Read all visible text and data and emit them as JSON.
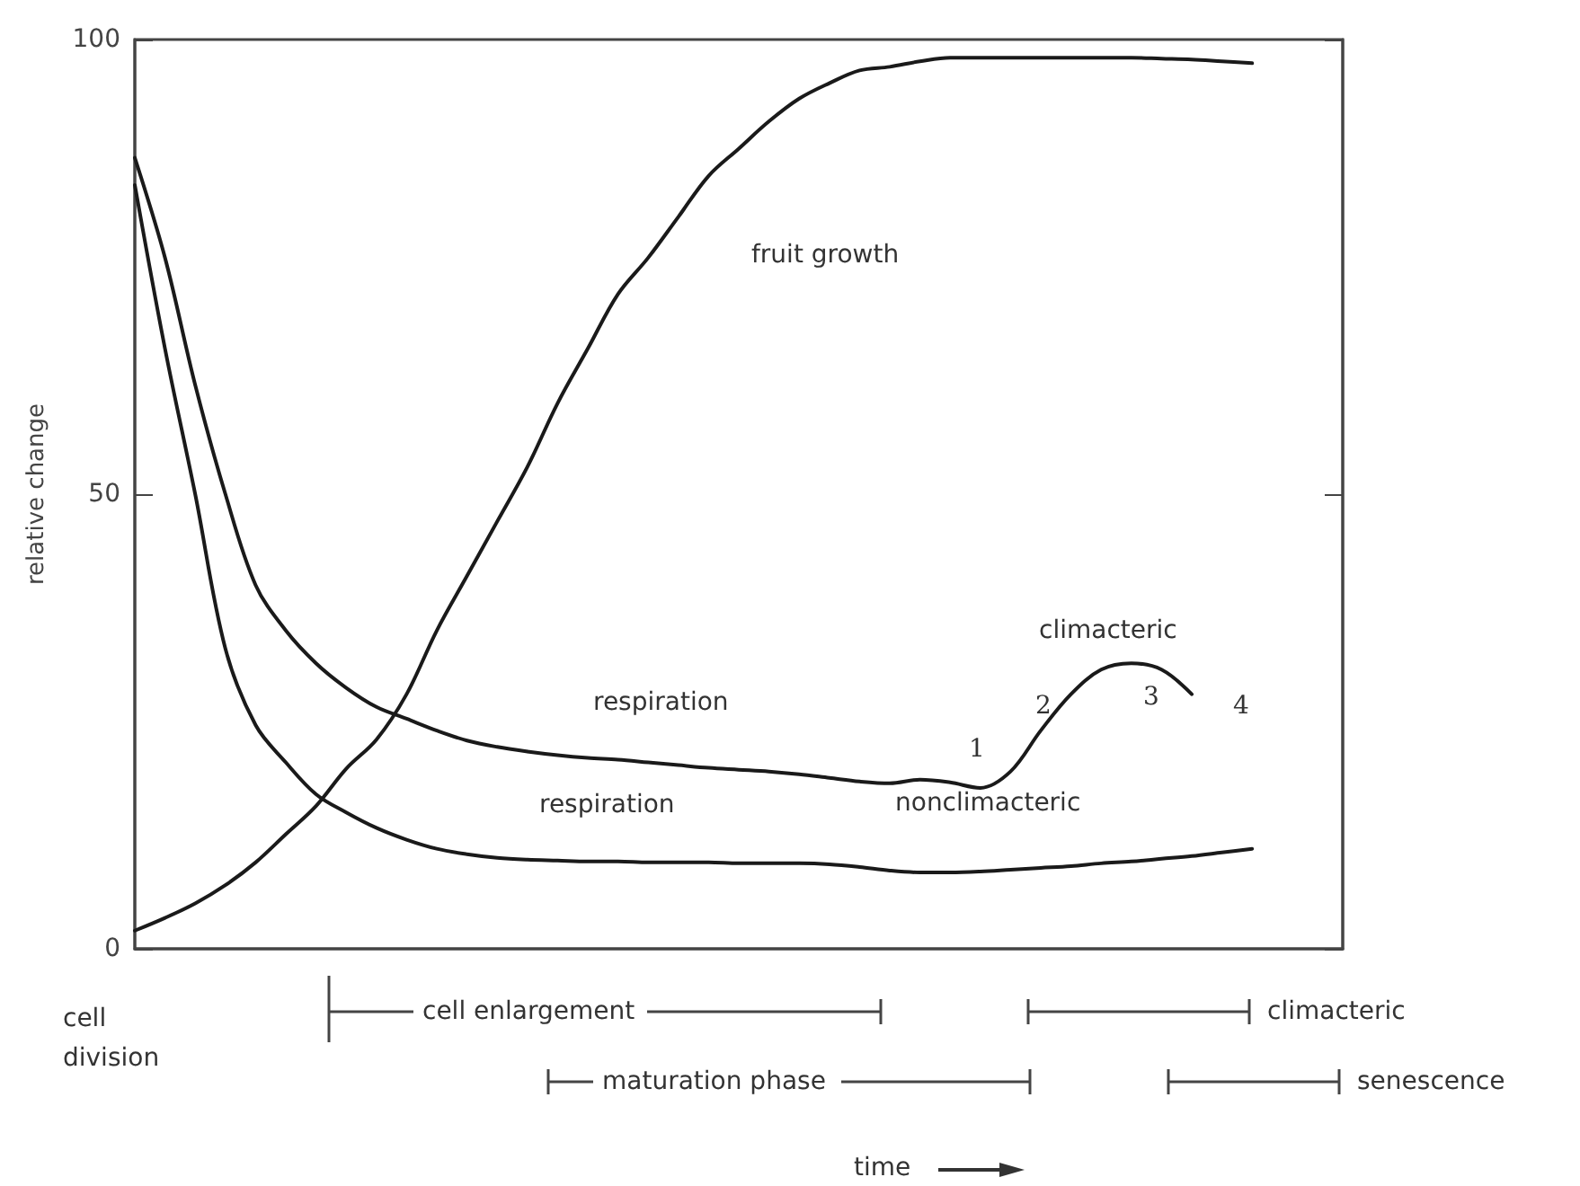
{
  "chart_data": {
    "type": "line",
    "ylabel": "relative change",
    "categories": [
      null,
      null,
      null,
      null,
      null,
      null,
      null,
      null,
      null,
      null,
      null,
      null,
      null,
      null,
      null,
      null,
      null,
      null,
      null,
      null,
      null,
      null,
      null,
      null,
      null,
      null,
      null,
      null,
      null,
      null,
      null,
      null,
      null,
      null,
      null,
      null,
      null,
      null,
      null,
      null,
      null
    ],
    "series": [
      {
        "color": "#1a1a1a",
        "values": [
          2,
          3.4,
          5,
          7,
          9.5,
          12.6,
          15.7,
          19.8,
          23,
          28,
          35,
          41,
          47,
          53,
          60,
          66,
          72,
          76,
          80.5,
          85,
          88,
          91,
          93.5,
          95.2,
          96.6,
          97,
          97.6,
          98,
          98,
          98,
          98,
          98,
          98,
          98,
          97.9,
          97.8,
          97.6,
          97.4,
          null,
          null,
          null
        ]
      },
      {
        "color": "#1a1a1a",
        "values": [
          87,
          76,
          62,
          50,
          40,
          35,
          31.4,
          28.7,
          26.6,
          25.3,
          24,
          22.9,
          22.2,
          21.7,
          21.3,
          21,
          20.8,
          20.5,
          20.2,
          19.9,
          19.7,
          19.5,
          19.2,
          18.8,
          18.4,
          18.2,
          18.6,
          18.3,
          17.7,
          19.5,
          24,
          28,
          30.7,
          31.4,
          30.7,
          28,
          null,
          null,
          null,
          null,
          null
        ]
      },
      {
        "color": "#1a1a1a",
        "values": [
          84,
          66,
          50,
          33,
          24.6,
          20.5,
          17,
          15,
          13.3,
          12,
          11,
          10.4,
          10,
          9.8,
          9.7,
          9.6,
          9.6,
          9.5,
          9.5,
          9.5,
          9.4,
          9.4,
          9.4,
          9.3,
          9,
          8.6,
          8.4,
          8.4,
          8.5,
          8.7,
          8.9,
          9.1,
          9.4,
          9.6,
          9.9,
          10.2,
          10.6,
          11,
          null,
          null,
          null
        ]
      }
    ],
    "ylim": [
      0,
      100
    ],
    "yticks": [
      0,
      50,
      100
    ],
    "tick_labels": "y",
    "marker": "none",
    "line_style": "solid",
    "annotations": [
      "fruit growth",
      "respiration",
      "respiration",
      "nonclimacteric",
      "climacteric",
      "1",
      "2",
      "3",
      "4",
      "cell division",
      "cell enlargement",
      "maturation phase",
      "climacteric",
      "senescence",
      "time"
    ]
  }
}
